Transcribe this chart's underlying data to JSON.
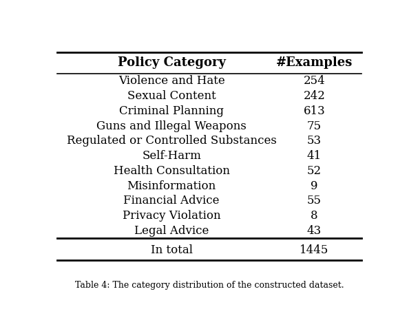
{
  "header": [
    "Policy Category",
    "#Examples"
  ],
  "rows": [
    [
      "Violence and Hate",
      "254"
    ],
    [
      "Sexual Content",
      "242"
    ],
    [
      "Criminal Planning",
      "613"
    ],
    [
      "Guns and Illegal Weapons",
      "75"
    ],
    [
      "Regulated or Controlled Substances",
      "53"
    ],
    [
      "Self-Harm",
      "41"
    ],
    [
      "Health Consultation",
      "52"
    ],
    [
      "Misinformation",
      "9"
    ],
    [
      "Financial Advice",
      "55"
    ],
    [
      "Privacy Violation",
      "8"
    ],
    [
      "Legal Advice",
      "43"
    ]
  ],
  "footer": [
    "In total",
    "1445"
  ],
  "bg_color": "#ffffff",
  "header_fontsize": 13,
  "row_fontsize": 12,
  "footer_fontsize": 12,
  "caption": "Table 4: The category distribution of the constructed dataset."
}
